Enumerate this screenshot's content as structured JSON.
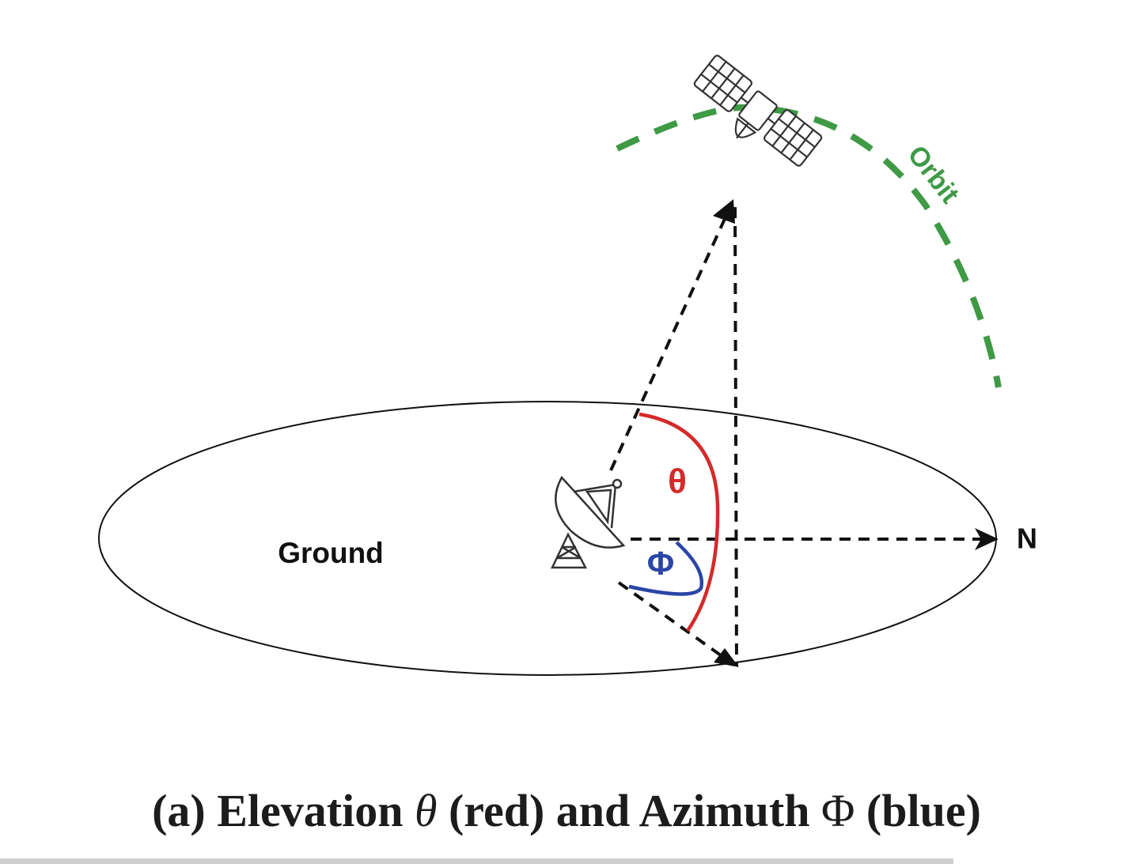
{
  "labels": {
    "ground": "Ground",
    "north": "N",
    "orbit": "Orbit",
    "theta": "θ",
    "phi": "Φ"
  },
  "caption": {
    "prefix": "(a) Elevation",
    "theta_symbol": "θ",
    "middle": "(red) and Azimuth",
    "phi_symbol": "Φ",
    "suffix": "(blue)"
  },
  "colors": {
    "elevation": "#d42a2a",
    "azimuth": "#2a46a6",
    "orbit": "#3e9a45",
    "lines": "#111111"
  },
  "icons": {
    "satellite": "satellite-icon",
    "ground_station": "satellite-dish-icon"
  }
}
